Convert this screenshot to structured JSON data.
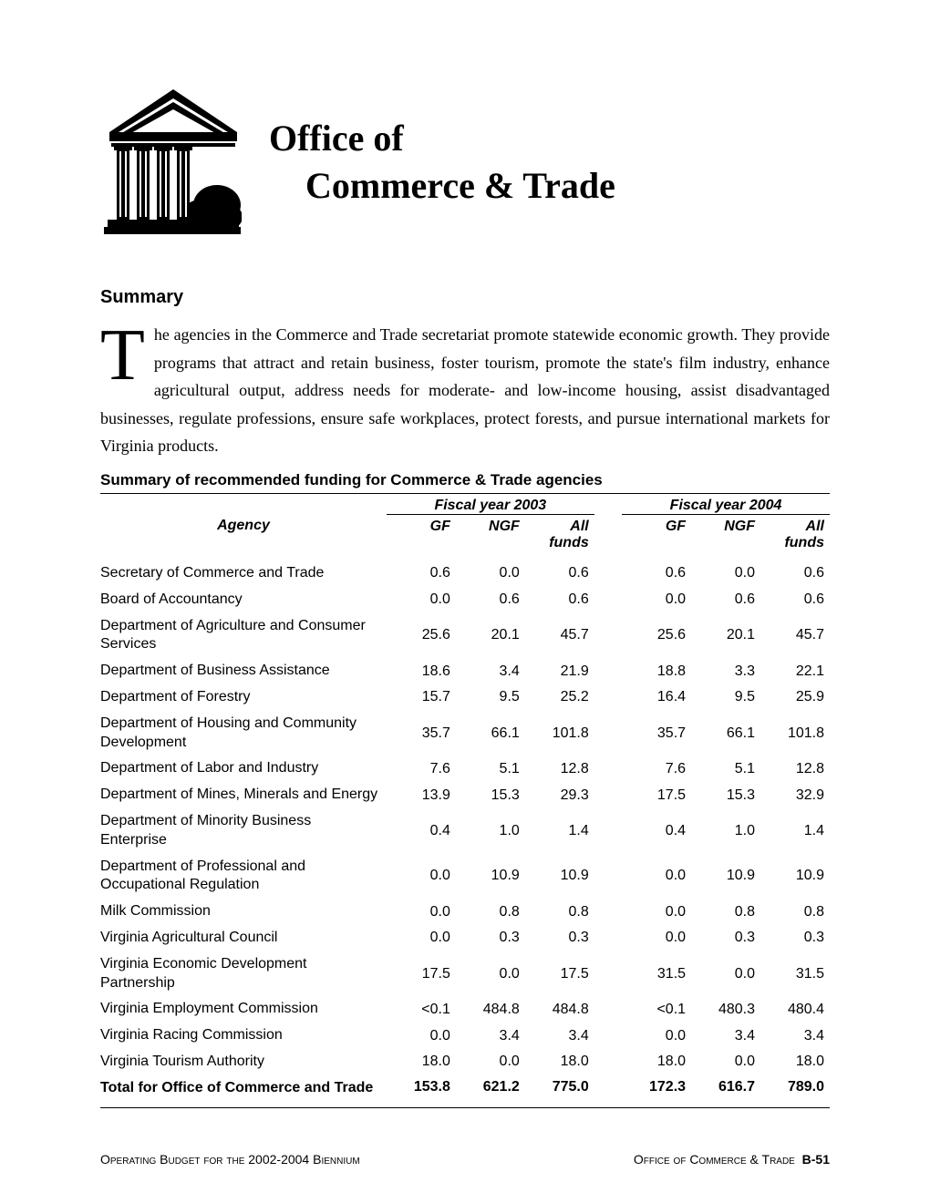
{
  "colors": {
    "background": "#ffffff",
    "text": "#000000",
    "rule": "#000000"
  },
  "header": {
    "title_line1": "Office of",
    "title_line2": "Commerce & Trade",
    "title_fontsize": 40,
    "logo_alt": "building-illustration"
  },
  "summary": {
    "heading": "Summary",
    "dropcap": "T",
    "body": "he agencies in the Commerce and Trade secretariat promote statewide economic growth. They provide programs that attract and retain business, foster tourism, promote the state's film industry, enhance agricultural output, address needs for moderate- and low-income housing, assist disadvantaged businesses, regulate professions, ensure safe workplaces, protect forests, and pursue international markets for Virginia products.",
    "body_fontsize": 18
  },
  "table": {
    "title": "Summary of recommended funding for Commerce & Trade agencies",
    "year_headers": [
      "Fiscal year 2003",
      "Fiscal year 2004"
    ],
    "column_headers": {
      "agency": "Agency",
      "gf": "GF",
      "ngf": "NGF",
      "all_funds_2003": "All funds",
      "all_funds_2004": "All funds"
    },
    "font_family": "Arial",
    "fontsize": 16,
    "rows": [
      {
        "agency": "Secretary of Commerce and Trade",
        "fy03_gf": "0.6",
        "fy03_ngf": "0.0",
        "fy03_all": "0.6",
        "fy04_gf": "0.6",
        "fy04_ngf": "0.0",
        "fy04_all": "0.6"
      },
      {
        "agency": "Board of Accountancy",
        "fy03_gf": "0.0",
        "fy03_ngf": "0.6",
        "fy03_all": "0.6",
        "fy04_gf": "0.0",
        "fy04_ngf": "0.6",
        "fy04_all": "0.6"
      },
      {
        "agency": "Department of Agriculture and Consumer Services",
        "fy03_gf": "25.6",
        "fy03_ngf": "20.1",
        "fy03_all": "45.7",
        "fy04_gf": "25.6",
        "fy04_ngf": "20.1",
        "fy04_all": "45.7"
      },
      {
        "agency": "Department of Business Assistance",
        "fy03_gf": "18.6",
        "fy03_ngf": "3.4",
        "fy03_all": "21.9",
        "fy04_gf": "18.8",
        "fy04_ngf": "3.3",
        "fy04_all": "22.1"
      },
      {
        "agency": "Department of Forestry",
        "fy03_gf": "15.7",
        "fy03_ngf": "9.5",
        "fy03_all": "25.2",
        "fy04_gf": "16.4",
        "fy04_ngf": "9.5",
        "fy04_all": "25.9"
      },
      {
        "agency": "Department of Housing and Community Development",
        "fy03_gf": "35.7",
        "fy03_ngf": "66.1",
        "fy03_all": "101.8",
        "fy04_gf": "35.7",
        "fy04_ngf": "66.1",
        "fy04_all": "101.8"
      },
      {
        "agency": "Department of Labor and Industry",
        "fy03_gf": "7.6",
        "fy03_ngf": "5.1",
        "fy03_all": "12.8",
        "fy04_gf": "7.6",
        "fy04_ngf": "5.1",
        "fy04_all": "12.8"
      },
      {
        "agency": "Department of Mines, Minerals and Energy",
        "fy03_gf": "13.9",
        "fy03_ngf": "15.3",
        "fy03_all": "29.3",
        "fy04_gf": "17.5",
        "fy04_ngf": "15.3",
        "fy04_all": "32.9"
      },
      {
        "agency": "Department of Minority Business Enterprise",
        "fy03_gf": "0.4",
        "fy03_ngf": "1.0",
        "fy03_all": "1.4",
        "fy04_gf": "0.4",
        "fy04_ngf": "1.0",
        "fy04_all": "1.4"
      },
      {
        "agency": "Department of Professional and Occupational Regulation",
        "fy03_gf": "0.0",
        "fy03_ngf": "10.9",
        "fy03_all": "10.9",
        "fy04_gf": "0.0",
        "fy04_ngf": "10.9",
        "fy04_all": "10.9"
      },
      {
        "agency": "Milk Commission",
        "fy03_gf": "0.0",
        "fy03_ngf": "0.8",
        "fy03_all": "0.8",
        "fy04_gf": "0.0",
        "fy04_ngf": "0.8",
        "fy04_all": "0.8"
      },
      {
        "agency": "Virginia Agricultural Council",
        "fy03_gf": "0.0",
        "fy03_ngf": "0.3",
        "fy03_all": "0.3",
        "fy04_gf": "0.0",
        "fy04_ngf": "0.3",
        "fy04_all": "0.3"
      },
      {
        "agency": "Virginia Economic Development Partnership",
        "fy03_gf": "17.5",
        "fy03_ngf": "0.0",
        "fy03_all": "17.5",
        "fy04_gf": "31.5",
        "fy04_ngf": "0.0",
        "fy04_all": "31.5"
      },
      {
        "agency": "Virginia Employment Commission",
        "fy03_gf": "<0.1",
        "fy03_ngf": "484.8",
        "fy03_all": "484.8",
        "fy04_gf": "<0.1",
        "fy04_ngf": "480.3",
        "fy04_all": "480.4"
      },
      {
        "agency": "Virginia Racing Commission",
        "fy03_gf": "0.0",
        "fy03_ngf": "3.4",
        "fy03_all": "3.4",
        "fy04_gf": "0.0",
        "fy04_ngf": "3.4",
        "fy04_all": "3.4"
      },
      {
        "agency": "Virginia Tourism Authority",
        "fy03_gf": "18.0",
        "fy03_ngf": "0.0",
        "fy03_all": "18.0",
        "fy04_gf": "18.0",
        "fy04_ngf": "0.0",
        "fy04_all": "18.0"
      }
    ],
    "total": {
      "agency": "Total for Office of Commerce and Trade",
      "fy03_gf": "153.8",
      "fy03_ngf": "621.2",
      "fy03_all": "775.0",
      "fy04_gf": "172.3",
      "fy04_ngf": "616.7",
      "fy04_all": "789.0"
    }
  },
  "footer": {
    "left": "Operating Budget for the 2002-2004 Biennium",
    "right_text": "Office of Commerce & Trade",
    "right_page": "B-51",
    "fontsize": 14
  }
}
